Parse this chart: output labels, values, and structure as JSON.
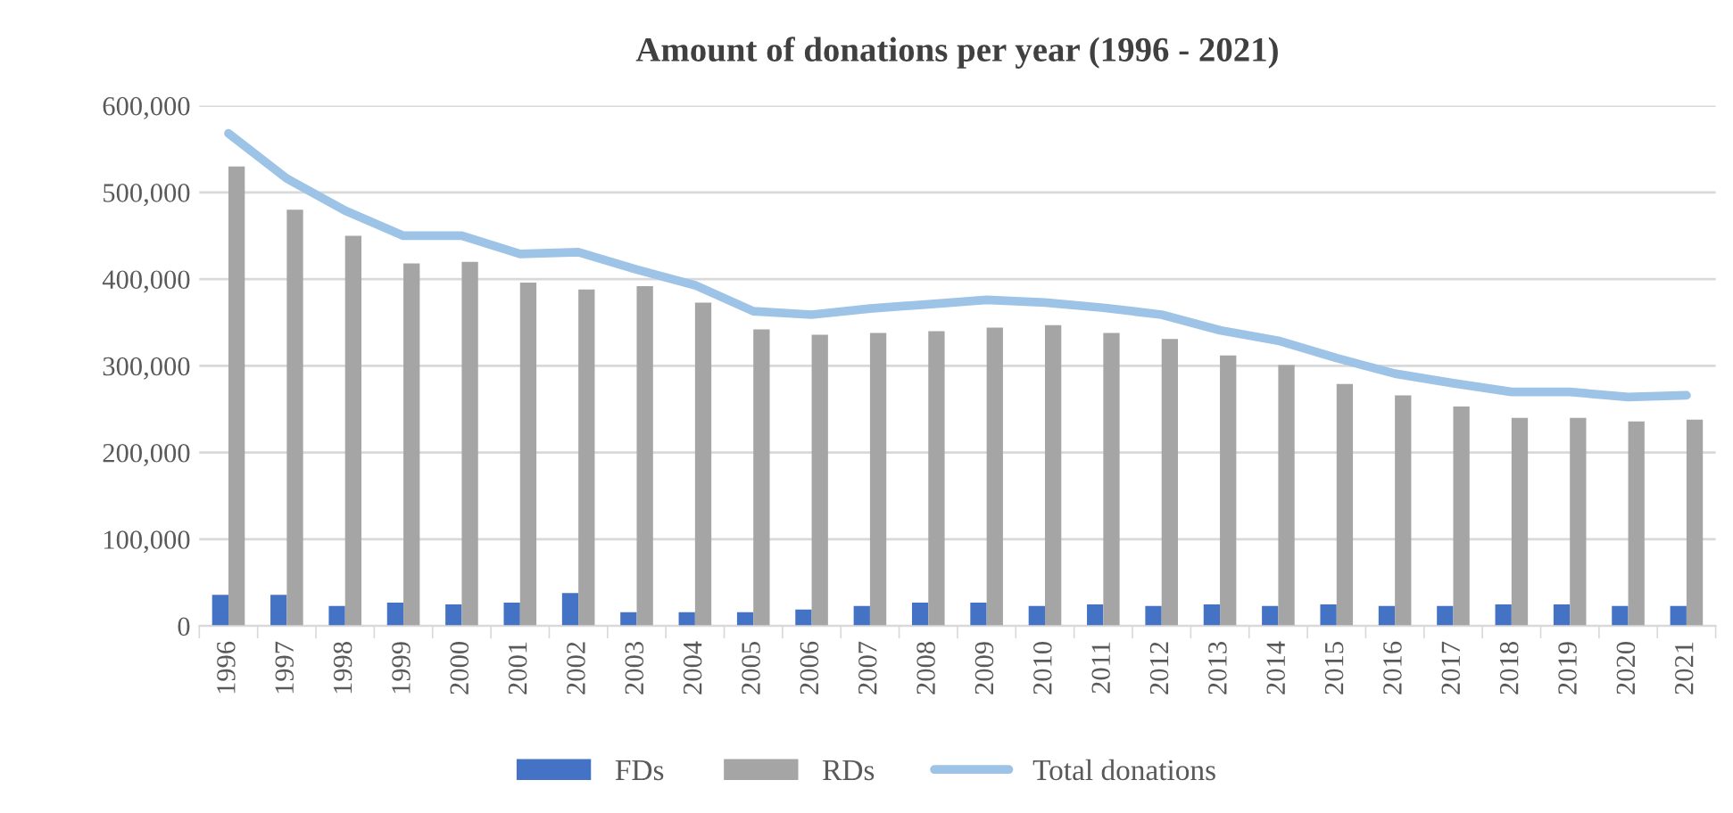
{
  "chart_data": {
    "type": "bar",
    "title": "Amount of donations per year (1996 - 2021)",
    "categories": [
      "1996",
      "1997",
      "1998",
      "1999",
      "2000",
      "2001",
      "2002",
      "2003",
      "2004",
      "2005",
      "2006",
      "2007",
      "2008",
      "2009",
      "2010",
      "2011",
      "2012",
      "2013",
      "2014",
      "2015",
      "2016",
      "2017",
      "2018",
      "2019",
      "2020",
      "2021"
    ],
    "series": [
      {
        "name": "FDs",
        "color": "#4472c4",
        "values": [
          36000,
          36000,
          23000,
          27000,
          25000,
          27000,
          38000,
          16000,
          16000,
          16000,
          19000,
          23000,
          27000,
          27000,
          23000,
          25000,
          23000,
          25000,
          23000,
          25000,
          23000,
          23000,
          25000,
          25000,
          23000,
          23000
        ]
      },
      {
        "name": "RDs",
        "color": "#a5a5a5",
        "values": [
          530000,
          480000,
          450000,
          418000,
          420000,
          396000,
          388000,
          392000,
          373000,
          342000,
          336000,
          338000,
          340000,
          344000,
          347000,
          338000,
          331000,
          312000,
          301000,
          279000,
          266000,
          253000,
          240000,
          240000,
          236000,
          238000
        ]
      },
      {
        "name": "Total donations",
        "type": "line",
        "color": "#9dc3e6",
        "values": [
          568000,
          516000,
          479000,
          450000,
          450000,
          429000,
          431000,
          411000,
          393000,
          363000,
          359000,
          366000,
          371000,
          376000,
          373000,
          367000,
          359000,
          341000,
          329000,
          309000,
          291000,
          280000,
          270000,
          270000,
          264000,
          266000
        ]
      }
    ],
    "ylim": [
      0,
      600000
    ],
    "yticks": [
      {
        "value": 0,
        "label": "0"
      },
      {
        "value": 100000,
        "label": "100,000"
      },
      {
        "value": 200000,
        "label": "200,000"
      },
      {
        "value": 300000,
        "label": "300,000"
      },
      {
        "value": 400000,
        "label": "400,000"
      },
      {
        "value": 500000,
        "label": "500,000"
      },
      {
        "value": 600000,
        "label": "600,000"
      }
    ],
    "grid": "y",
    "legend": "bottom",
    "marker": "none",
    "line_style": "solid"
  }
}
